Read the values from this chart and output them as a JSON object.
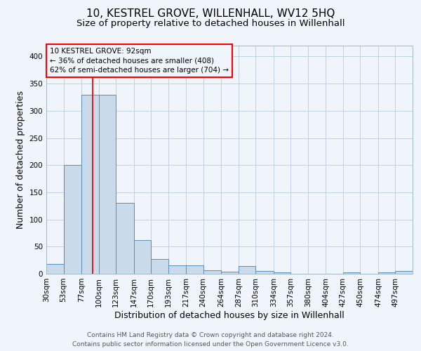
{
  "title": "10, KESTREL GROVE, WILLENHALL, WV12 5HQ",
  "subtitle": "Size of property relative to detached houses in Willenhall",
  "xlabel": "Distribution of detached houses by size in Willenhall",
  "ylabel": "Number of detached properties",
  "footer_line1": "Contains HM Land Registry data © Crown copyright and database right 2024.",
  "footer_line2": "Contains public sector information licensed under the Open Government Licence v3.0.",
  "bin_labels": [
    "30sqm",
    "53sqm",
    "77sqm",
    "100sqm",
    "123sqm",
    "147sqm",
    "170sqm",
    "193sqm",
    "217sqm",
    "240sqm",
    "264sqm",
    "287sqm",
    "310sqm",
    "334sqm",
    "357sqm",
    "380sqm",
    "404sqm",
    "427sqm",
    "450sqm",
    "474sqm",
    "497sqm"
  ],
  "bar_values": [
    18,
    200,
    330,
    330,
    130,
    62,
    27,
    16,
    16,
    7,
    4,
    14,
    5,
    3,
    0,
    0,
    0,
    3,
    0,
    3,
    5
  ],
  "bar_color": "#c9daea",
  "bar_edge_color": "#5b8db8",
  "grid_color": "#c0d0e0",
  "background_color": "#f0f5fb",
  "red_line_x": 92,
  "annotation_box_text": "10 KESTREL GROVE: 92sqm\n← 36% of detached houses are smaller (408)\n62% of semi-detached houses are larger (704) →",
  "ylim": [
    0,
    420
  ],
  "yticks": [
    0,
    50,
    100,
    150,
    200,
    250,
    300,
    350,
    400
  ],
  "title_fontsize": 11,
  "subtitle_fontsize": 9.5,
  "axis_label_fontsize": 9,
  "tick_fontsize": 7.5,
  "annotation_fontsize": 7.5,
  "footer_fontsize": 6.5,
  "bin_edges_numeric": [
    30,
    53,
    77,
    100,
    123,
    147,
    170,
    193,
    217,
    240,
    264,
    287,
    310,
    334,
    357,
    380,
    404,
    427,
    450,
    474,
    497,
    520
  ]
}
